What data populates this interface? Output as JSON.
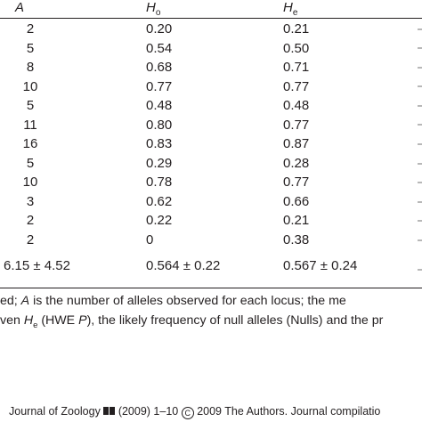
{
  "table": {
    "headers": {
      "a": "A",
      "ho_main": "H",
      "ho_sub": "o",
      "he_main": "H",
      "he_sub": "e"
    },
    "rows": [
      {
        "a": "2",
        "ho": "0.20",
        "he": "0.21"
      },
      {
        "a": "5",
        "ho": "0.54",
        "he": "0.50"
      },
      {
        "a": "8",
        "ho": "0.68",
        "he": "0.71"
      },
      {
        "a": "10",
        "ho": "0.77",
        "he": "0.77"
      },
      {
        "a": "5",
        "ho": "0.48",
        "he": "0.48"
      },
      {
        "a": "11",
        "ho": "0.80",
        "he": "0.77"
      },
      {
        "a": "16",
        "ho": "0.83",
        "he": "0.87"
      },
      {
        "a": "5",
        "ho": "0.29",
        "he": "0.28"
      },
      {
        "a": "10",
        "ho": "0.78",
        "he": "0.77"
      },
      {
        "a": "3",
        "ho": "0.62",
        "he": "0.66"
      },
      {
        "a": "2",
        "ho": "0.22",
        "he": "0.21"
      },
      {
        "a": "2",
        "ho": "0",
        "he": "0.38"
      }
    ],
    "summary": {
      "a": "6.15 ± 4.52",
      "ho": "0.564 ± 0.22",
      "he": "0.567 ± 0.24"
    }
  },
  "footnote": {
    "line1_a": "ed; ",
    "line1_a_italic": "A",
    "line1_b": " is the number of alleles observed for each locus; the me",
    "line2_a": "ven ",
    "line2_h": "H",
    "line2_sub": "e",
    "line2_b": " (HWE ",
    "line2_p": "P",
    "line2_c": "), the likely frequency of null alleles (Nulls) and the pr"
  },
  "journal": {
    "prefix": "Journal of Zoology",
    "middle": "(2009) 1–10",
    "copyright_symbol": "C",
    "suffix": "2009 The Authors. Journal compilatio"
  }
}
